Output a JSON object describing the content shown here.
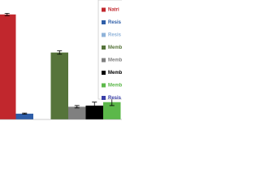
{
  "chart_data": {
    "type": "bar",
    "ylim": [
      0,
      100
    ],
    "series": [
      {
        "name": "Natri",
        "color": "#c1272d",
        "values": [
          91
        ],
        "errors": [
          1
        ]
      },
      {
        "name": "Resis",
        "color": "#2e5ea8",
        "values": [
          5
        ],
        "errors": [
          0.5
        ]
      },
      {
        "name": "Resis",
        "color": "#8fb3d9",
        "values": [
          0
        ],
        "errors": [
          0
        ]
      },
      {
        "name": "Memb",
        "color": "#56743a",
        "values": [
          58
        ],
        "errors": [
          1.5
        ]
      },
      {
        "name": "Memb",
        "color": "#808080",
        "values": [
          11
        ],
        "errors": [
          1
        ]
      },
      {
        "name": "Memb",
        "color": "#000000",
        "values": [
          12
        ],
        "errors": [
          3
        ]
      },
      {
        "name": "Memb",
        "color": "#5cb84a",
        "values": [
          15
        ],
        "errors": [
          3
        ]
      },
      {
        "name": "Resis",
        "color": "#3a3fa8",
        "values": [
          null
        ],
        "errors": [
          null
        ]
      }
    ],
    "legend": "upper right"
  }
}
